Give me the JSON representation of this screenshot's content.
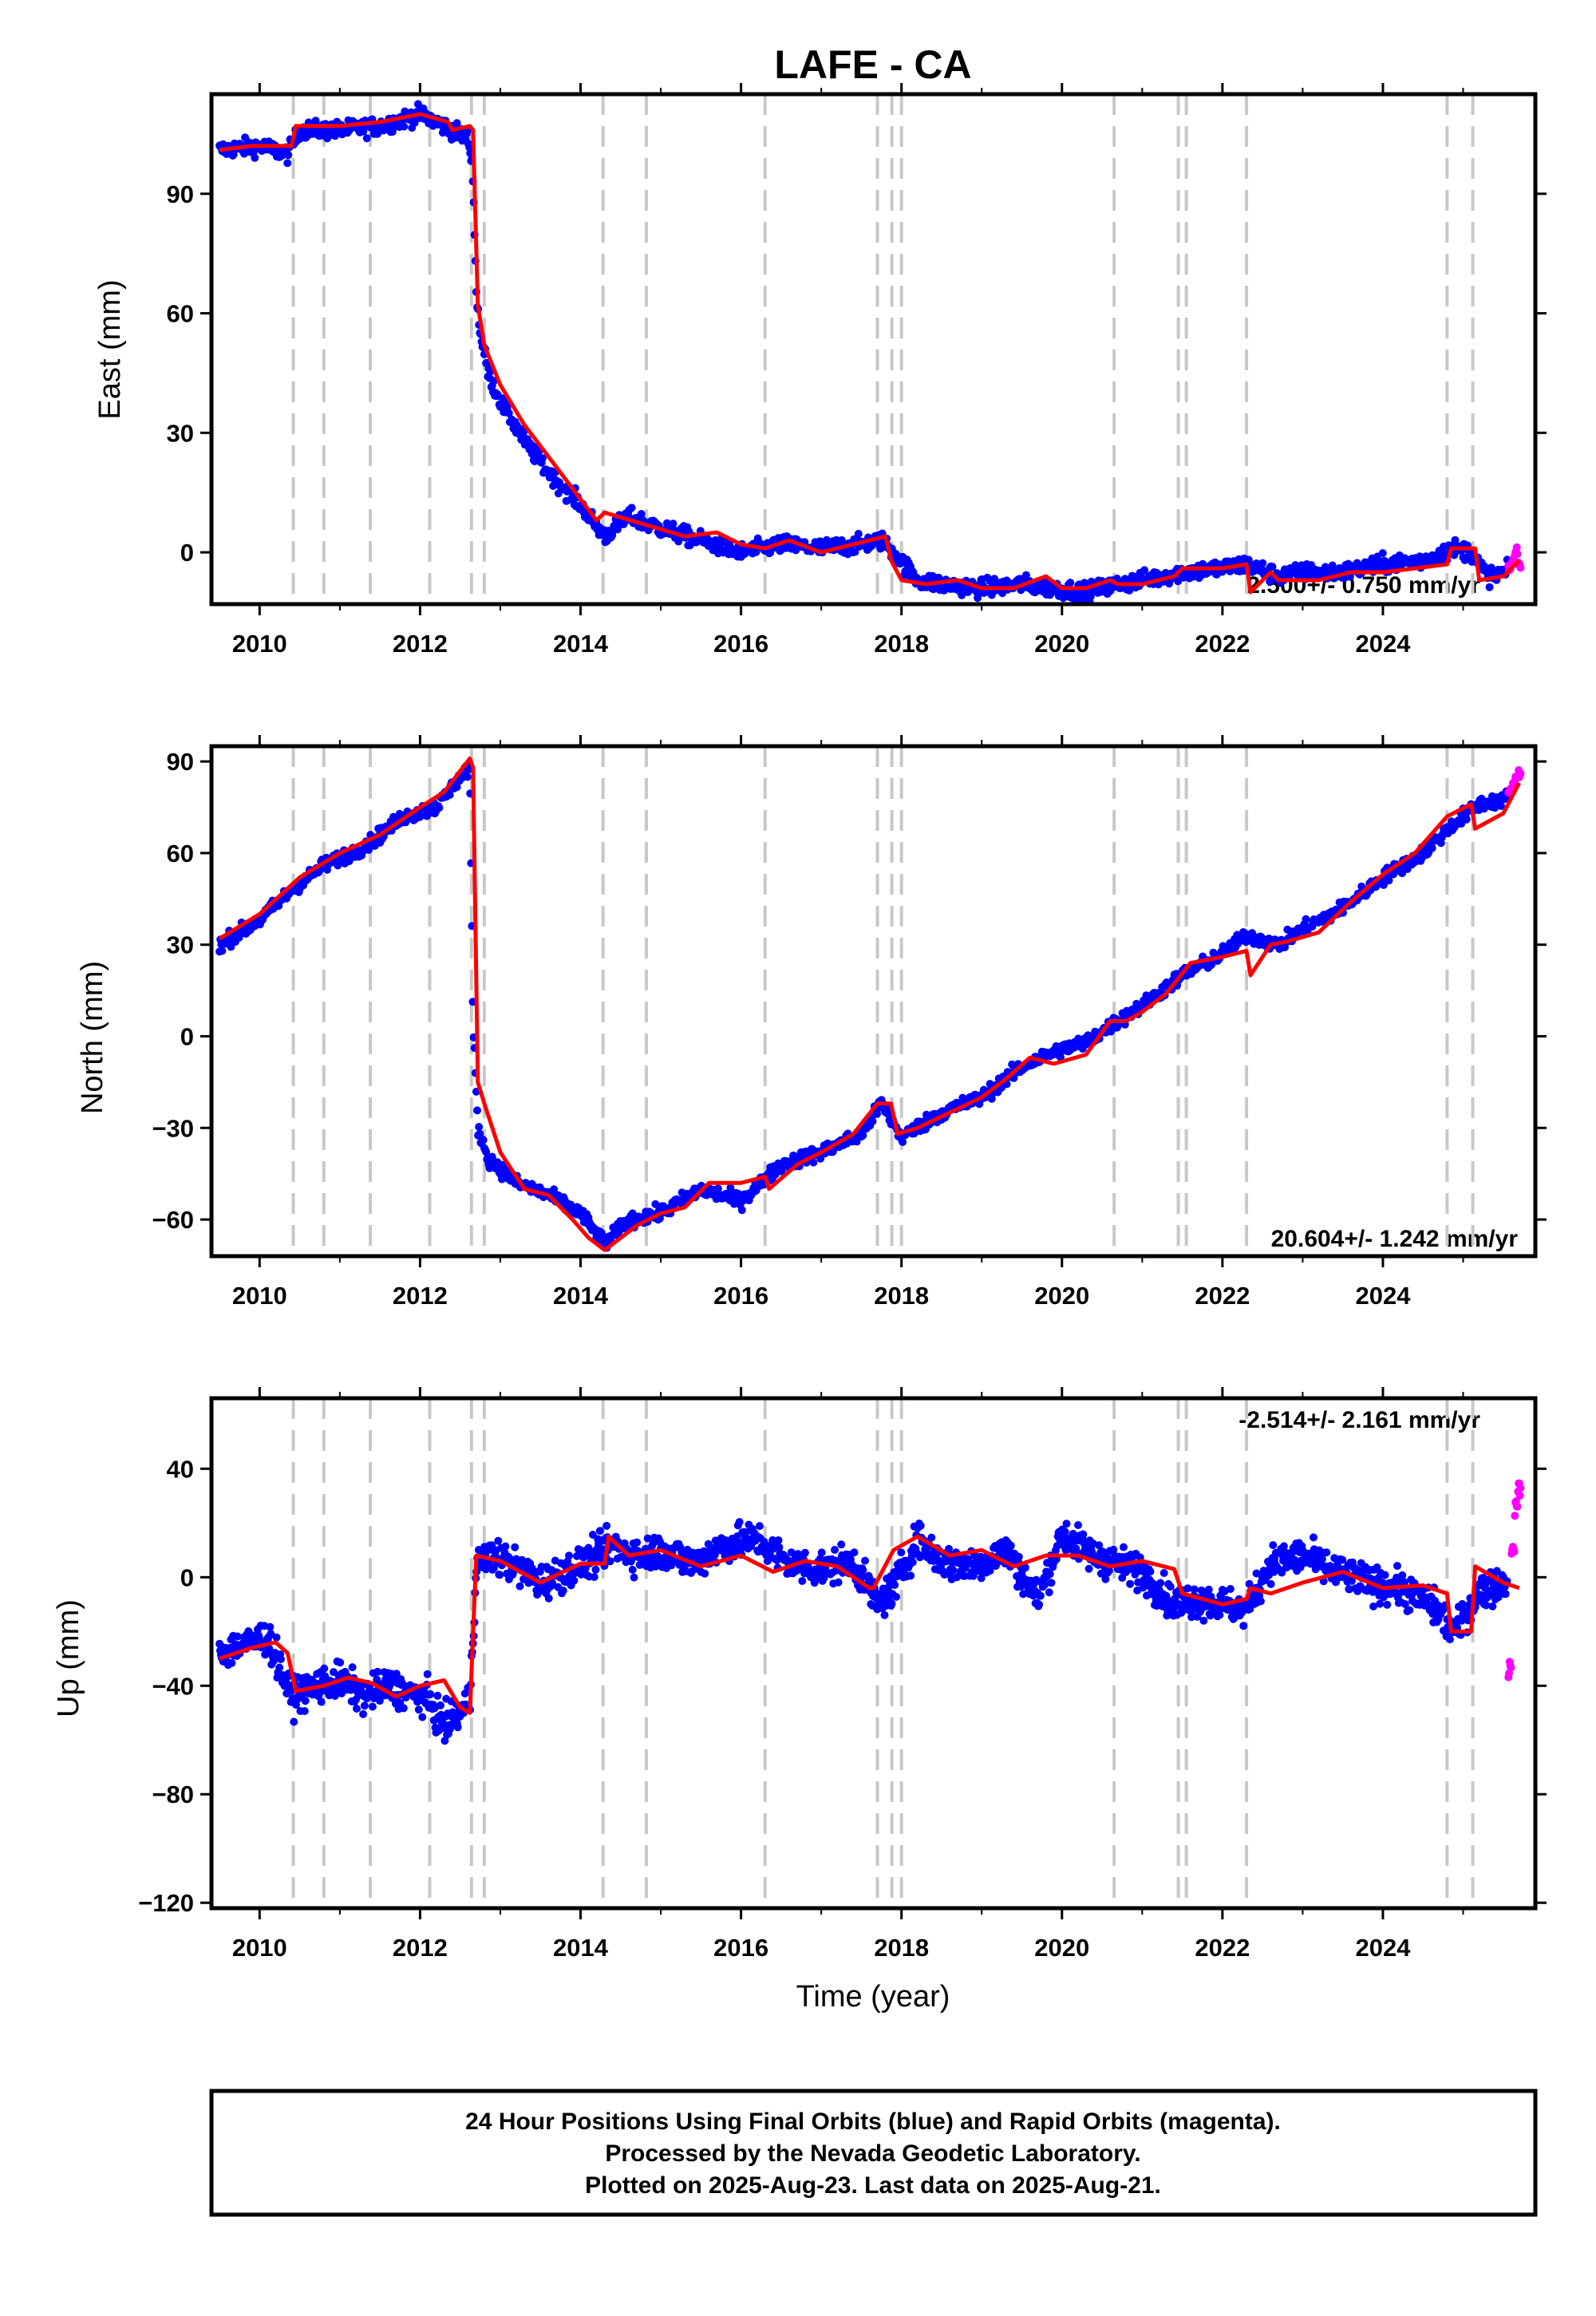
{
  "title": "LAFE - CA",
  "chart_data": [
    {
      "type": "scatter",
      "ylabel": "East (mm)",
      "xlabel": "",
      "xlim": [
        2009.4,
        2025.9
      ],
      "ylim": [
        -13,
        115
      ],
      "xticks": [
        "2010",
        "2012",
        "2014",
        "2016",
        "2018",
        "2020",
        "2022",
        "2024"
      ],
      "yticks": [
        "0",
        "30",
        "60",
        "90"
      ],
      "ytick_values": [
        0,
        30,
        60,
        90
      ],
      "rate": "2.500+/- 0.750 mm/yr",
      "series": [
        {
          "name": "Final Orbits",
          "color": "#0000ff",
          "x": [
            2009.5,
            2010.0,
            2010.35,
            2010.5,
            2011.0,
            2011.5,
            2012.0,
            2012.3,
            2012.6,
            2012.66,
            2012.7,
            2012.75,
            2012.85,
            2013.0,
            2013.3,
            2013.6,
            2014.0,
            2014.3,
            2014.6,
            2015.0,
            2015.5,
            2016.0,
            2016.5,
            2017.0,
            2017.5,
            2017.75,
            2017.9,
            2018.2,
            2018.5,
            2019.0,
            2019.5,
            2019.9,
            2020.3,
            2020.7,
            2021.0,
            2021.5,
            2022.0,
            2022.3,
            2022.7,
            2023.0,
            2023.5,
            2024.0,
            2024.5,
            2024.9,
            2025.1,
            2025.3,
            2025.55
          ],
          "y": [
            101,
            102,
            100,
            106,
            106,
            107,
            110,
            107,
            104,
            95,
            65,
            55,
            45,
            38,
            28,
            20,
            12,
            4,
            9,
            6,
            3,
            0,
            2,
            1,
            2,
            3,
            0,
            -7,
            -8,
            -9,
            -8,
            -9,
            -10,
            -8,
            -7,
            -5,
            -4,
            -3,
            -6,
            -5,
            -5,
            -3,
            -2,
            1,
            0,
            -6,
            -5
          ]
        },
        {
          "name": "Rapid Orbits",
          "color": "#ff00ff",
          "x": [
            2025.58,
            2025.62,
            2025.66,
            2025.7
          ],
          "y": [
            -4,
            -2,
            0,
            -3
          ]
        },
        {
          "name": "Model",
          "color": "#ff0000",
          "x": [
            2009.5,
            2009.9,
            2010.4,
            2010.45,
            2011.0,
            2011.5,
            2012.0,
            2012.35,
            2012.4,
            2012.62,
            2012.66,
            2012.72,
            2012.8,
            2013.0,
            2013.3,
            2013.6,
            2013.9,
            2014.2,
            2014.3,
            2014.8,
            2015.3,
            2015.7,
            2016.0,
            2016.3,
            2016.6,
            2017.0,
            2017.4,
            2017.8,
            2017.87,
            2018.0,
            2018.3,
            2018.7,
            2019.0,
            2019.4,
            2019.8,
            2020.0,
            2020.3,
            2020.6,
            2020.7,
            2021.0,
            2021.4,
            2021.5,
            2022.0,
            2022.3,
            2022.35,
            2022.6,
            2022.7,
            2023.2,
            2023.6,
            2024.0,
            2024.4,
            2024.8,
            2024.85,
            2025.15,
            2025.2,
            2025.5,
            2025.7
          ],
          "y": [
            101,
            102,
            102,
            107,
            107,
            108,
            110,
            108,
            106,
            107,
            106,
            62,
            52,
            42,
            32,
            24,
            16,
            8,
            10,
            7,
            4,
            5,
            2,
            1,
            3,
            0,
            2,
            4,
            -2,
            -7,
            -8,
            -7,
            -9,
            -9,
            -6,
            -9,
            -9,
            -7,
            -8,
            -8,
            -6,
            -4,
            -4,
            -3,
            -10,
            -5,
            -7,
            -7,
            -5,
            -5,
            -4,
            -3,
            1,
            1,
            -7,
            -6,
            -2
          ]
        }
      ]
    },
    {
      "type": "scatter",
      "ylabel": "North (mm)",
      "xlabel": "",
      "xlim": [
        2009.4,
        2025.9
      ],
      "ylim": [
        -72,
        95
      ],
      "xticks": [
        "2010",
        "2012",
        "2014",
        "2016",
        "2018",
        "2020",
        "2022",
        "2024"
      ],
      "yticks": [
        "−60",
        "−30",
        "0",
        "30",
        "60",
        "90"
      ],
      "ytick_values": [
        -60,
        -30,
        0,
        30,
        60,
        90
      ],
      "rate": "20.604+/- 1.242 mm/yr",
      "series": [
        {
          "name": "Final Orbits",
          "color": "#0000ff",
          "x": [
            2009.5,
            2010.0,
            2010.4,
            2010.8,
            2011.3,
            2011.8,
            2012.2,
            2012.5,
            2012.62,
            2012.66,
            2012.72,
            2012.85,
            2013.2,
            2013.6,
            2014.0,
            2014.3,
            2014.6,
            2015.0,
            2015.5,
            2016.0,
            2016.5,
            2017.0,
            2017.5,
            2017.75,
            2018.0,
            2018.5,
            2019.0,
            2019.5,
            2019.9,
            2020.3,
            2020.7,
            2021.0,
            2021.5,
            2022.0,
            2022.3,
            2022.7,
            2023.0,
            2023.5,
            2024.0,
            2024.5,
            2024.9,
            2025.2,
            2025.55
          ],
          "y": [
            30,
            38,
            48,
            56,
            62,
            72,
            75,
            85,
            88,
            5,
            -30,
            -40,
            -48,
            -52,
            -58,
            -68,
            -60,
            -58,
            -50,
            -54,
            -42,
            -38,
            -32,
            -22,
            -33,
            -25,
            -20,
            -10,
            -5,
            -2,
            5,
            10,
            20,
            27,
            33,
            30,
            35,
            42,
            52,
            60,
            70,
            76,
            78
          ]
        },
        {
          "name": "Rapid Orbits",
          "color": "#ff00ff",
          "x": [
            2025.58,
            2025.62,
            2025.66,
            2025.7
          ],
          "y": [
            80,
            82,
            84,
            86
          ]
        },
        {
          "name": "Model",
          "color": "#ff0000",
          "x": [
            2009.5,
            2010.0,
            2010.5,
            2011.0,
            2011.5,
            2012.0,
            2012.3,
            2012.62,
            2012.66,
            2012.72,
            2012.8,
            2013.0,
            2013.3,
            2013.6,
            2013.9,
            2014.1,
            2014.3,
            2014.4,
            2014.7,
            2015.0,
            2015.3,
            2015.6,
            2016.0,
            2016.3,
            2016.35,
            2016.7,
            2017.0,
            2017.4,
            2017.7,
            2017.87,
            2017.95,
            2018.2,
            2018.6,
            2019.0,
            2019.3,
            2019.6,
            2019.9,
            2020.3,
            2020.6,
            2020.8,
            2021.0,
            2021.3,
            2021.6,
            2022.0,
            2022.3,
            2022.35,
            2022.6,
            2022.8,
            2023.2,
            2023.6,
            2024.0,
            2024.4,
            2024.8,
            2025.1,
            2025.15,
            2025.5,
            2025.7
          ],
          "y": [
            32,
            40,
            52,
            60,
            66,
            75,
            80,
            91,
            88,
            -15,
            -22,
            -38,
            -50,
            -52,
            -60,
            -66,
            -70,
            -68,
            -62,
            -58,
            -56,
            -48,
            -48,
            -46,
            -50,
            -42,
            -38,
            -32,
            -22,
            -22,
            -32,
            -30,
            -25,
            -20,
            -14,
            -7,
            -9,
            -6,
            5,
            5,
            8,
            14,
            24,
            26,
            28,
            20,
            30,
            31,
            34,
            44,
            53,
            60,
            72,
            76,
            68,
            73,
            83
          ]
        }
      ]
    },
    {
      "type": "scatter",
      "ylabel": "Up (mm)",
      "xlabel": "Time (year)",
      "xlim": [
        2009.4,
        2025.9
      ],
      "ylim": [
        -122,
        66
      ],
      "xticks": [
        "2010",
        "2012",
        "2014",
        "2016",
        "2018",
        "2020",
        "2022",
        "2024"
      ],
      "yticks": [
        "−120",
        "−80",
        "−40",
        "0",
        "40"
      ],
      "ytick_values": [
        -120,
        -80,
        -40,
        0,
        40
      ],
      "rate": "-2.514+/- 2.161 mm/yr",
      "series": [
        {
          "name": "Final Orbits",
          "color": "#0000ff",
          "x": [
            2009.5,
            2009.8,
            2010.1,
            2010.4,
            2010.7,
            2011.0,
            2011.3,
            2011.6,
            2012.1,
            2012.3,
            2012.5,
            2012.62,
            2012.7,
            2012.9,
            2013.2,
            2013.5,
            2013.8,
            2014.1,
            2014.4,
            2014.7,
            2015.0,
            2015.4,
            2015.8,
            2016.2,
            2016.6,
            2017.0,
            2017.4,
            2017.7,
            2017.9,
            2018.2,
            2018.5,
            2018.9,
            2019.3,
            2019.7,
            2020.0,
            2020.4,
            2020.7,
            2021.0,
            2021.4,
            2021.7,
            2022.0,
            2022.3,
            2022.6,
            2023.0,
            2023.4,
            2023.8,
            2024.2,
            2024.6,
            2024.9,
            2025.2,
            2025.55
          ],
          "y": [
            -28,
            -25,
            -22,
            -44,
            -40,
            -38,
            -44,
            -40,
            -45,
            -55,
            -50,
            -46,
            5,
            8,
            4,
            -2,
            2,
            6,
            12,
            8,
            10,
            5,
            12,
            14,
            5,
            3,
            6,
            -10,
            -4,
            14,
            6,
            4,
            10,
            -8,
            16,
            8,
            5,
            2,
            -10,
            -8,
            -10,
            -12,
            5,
            8,
            2,
            -2,
            -4,
            -10,
            -20,
            -5,
            -2
          ]
        },
        {
          "name": "Rapid Orbits",
          "color": "#ff00ff",
          "x": [
            2025.58,
            2025.62,
            2025.66,
            2025.7
          ],
          "y": [
            -34,
            12,
            25,
            34
          ]
        },
        {
          "name": "Model",
          "color": "#ff0000",
          "x": [
            2009.5,
            2009.9,
            2010.2,
            2010.35,
            2010.45,
            2010.8,
            2011.1,
            2011.4,
            2011.7,
            2012.0,
            2012.3,
            2012.5,
            2012.62,
            2012.7,
            2013.0,
            2013.5,
            2014.0,
            2014.3,
            2014.35,
            2014.6,
            2015.0,
            2015.5,
            2016.0,
            2016.4,
            2016.8,
            2017.2,
            2017.6,
            2017.65,
            2017.9,
            2018.2,
            2018.6,
            2019.0,
            2019.4,
            2019.8,
            2020.2,
            2020.6,
            2021.0,
            2021.4,
            2021.5,
            2022.0,
            2022.3,
            2022.35,
            2022.6,
            2023.0,
            2023.5,
            2024.0,
            2024.5,
            2024.8,
            2024.85,
            2025.1,
            2025.15,
            2025.5,
            2025.7
          ],
          "y": [
            -30,
            -26,
            -24,
            -28,
            -42,
            -40,
            -37,
            -39,
            -44,
            -40,
            -38,
            -48,
            -50,
            8,
            6,
            -2,
            5,
            5,
            15,
            8,
            10,
            4,
            8,
            2,
            6,
            4,
            -4,
            -4,
            10,
            15,
            8,
            10,
            4,
            8,
            8,
            4,
            6,
            3,
            -6,
            -10,
            -8,
            -4,
            -6,
            -2,
            2,
            -4,
            -3,
            -6,
            -20,
            -20,
            4,
            -2,
            -4
          ]
        }
      ]
    }
  ],
  "caption": {
    "line1": "24 Hour Positions Using Final Orbits (blue) and Rapid Orbits (magenta).",
    "line2": "Processed by the Nevada Geodetic Laboratory.",
    "line3": "Plotted on 2025-Aug-23. Last data on 2025-Aug-21."
  },
  "equipment_change_years": [
    2010.42,
    2010.8,
    2011.38,
    2012.12,
    2012.64,
    2012.8,
    2014.28,
    2014.82,
    2016.3,
    2017.7,
    2017.88,
    2018.0,
    2020.65,
    2021.45,
    2021.55,
    2022.3,
    2024.8,
    2025.12
  ]
}
